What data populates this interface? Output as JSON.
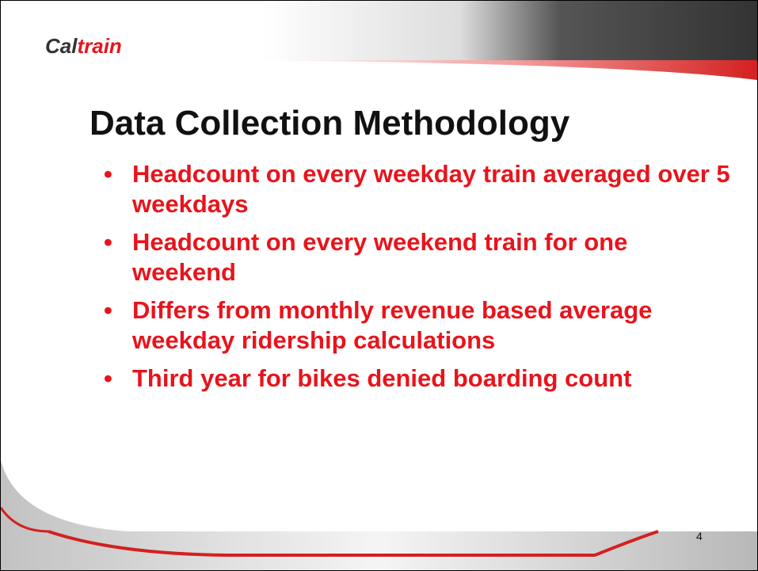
{
  "header": {
    "logo_part1": "Cal",
    "logo_part2": "train"
  },
  "title": "Data Collection Methodology",
  "bullets": [
    "Headcount on every weekday train averaged over 5 weekdays",
    "Headcount on every weekend train for one weekend",
    "Differs from monthly revenue based average weekday ridership calculations",
    "Third year for bikes denied boarding count"
  ],
  "page_number": "4"
}
